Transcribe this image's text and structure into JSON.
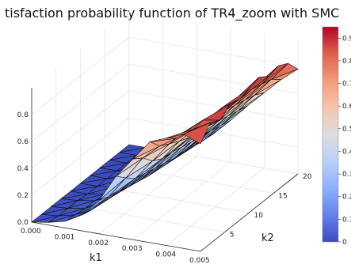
{
  "chart_data": {
    "type": "surface",
    "title": "tisfaction probability function of TR4_zoom with SMC",
    "xlabel": "k1",
    "ylabel": "k2",
    "zlabel": "",
    "x": [
      0.0,
      0.0005,
      0.001,
      0.0015,
      0.002,
      0.0025,
      0.003,
      0.0035,
      0.004,
      0.0045,
      0.005
    ],
    "y": [
      0,
      2,
      4,
      6,
      8,
      10,
      12,
      14,
      16,
      18,
      20
    ],
    "xlim": [
      0.0,
      0.005
    ],
    "ylim": [
      0,
      20
    ],
    "zlim": [
      0.0,
      1.0
    ],
    "x_ticks": [
      "0.000",
      "0.001",
      "0.002",
      "0.003",
      "0.004",
      "0.005"
    ],
    "x_tick_values": [
      0.0,
      0.001,
      0.002,
      0.003,
      0.004,
      0.005
    ],
    "y_ticks": [
      "5",
      "10",
      "15",
      "20"
    ],
    "y_tick_values": [
      5,
      10,
      15,
      20
    ],
    "z_ticks": [
      "0.0",
      "0.2",
      "0.4",
      "0.6",
      "0.8"
    ],
    "z_tick_values": [
      0.0,
      0.2,
      0.4,
      0.6,
      0.8
    ],
    "z": [
      [
        0.0,
        0.02,
        0.05,
        0.12,
        0.25,
        0.45,
        0.6,
        0.75,
        0.8,
        0.85,
        0.8
      ],
      [
        0.0,
        0.01,
        0.04,
        0.1,
        0.22,
        0.38,
        0.55,
        0.66,
        0.74,
        0.83,
        0.9
      ],
      [
        0.0,
        0.01,
        0.03,
        0.09,
        0.2,
        0.32,
        0.47,
        0.62,
        0.74,
        0.84,
        0.86
      ],
      [
        0.0,
        0.01,
        0.03,
        0.08,
        0.18,
        0.3,
        0.43,
        0.58,
        0.7,
        0.8,
        0.92
      ],
      [
        0.0,
        0.0,
        0.02,
        0.07,
        0.16,
        0.28,
        0.42,
        0.55,
        0.7,
        0.82,
        0.9
      ],
      [
        0.0,
        0.0,
        0.02,
        0.06,
        0.14,
        0.26,
        0.4,
        0.54,
        0.66,
        0.8,
        0.92
      ],
      [
        0.0,
        0.0,
        0.02,
        0.05,
        0.13,
        0.24,
        0.38,
        0.52,
        0.66,
        0.78,
        0.95
      ],
      [
        0.0,
        0.0,
        0.01,
        0.05,
        0.12,
        0.23,
        0.36,
        0.5,
        0.64,
        0.78,
        0.9
      ],
      [
        0.0,
        0.0,
        0.01,
        0.04,
        0.11,
        0.22,
        0.35,
        0.48,
        0.62,
        0.76,
        0.92
      ],
      [
        0.0,
        0.0,
        0.01,
        0.04,
        0.1,
        0.2,
        0.33,
        0.46,
        0.6,
        0.74,
        0.88
      ],
      [
        0.0,
        0.0,
        0.01,
        0.03,
        0.09,
        0.19,
        0.31,
        0.44,
        0.56,
        0.68,
        0.78
      ]
    ],
    "colorbar": {
      "range": [
        0.0,
        0.95
      ],
      "ticks": [
        "0",
        "0.1",
        "0.2",
        "0.3",
        "0.4",
        "0.5",
        "0.6",
        "0.7",
        "0.8",
        "0.9"
      ],
      "tick_values": [
        0,
        0.1,
        0.2,
        0.3,
        0.4,
        0.5,
        0.6,
        0.7,
        0.8,
        0.9
      ],
      "colormap": "coolwarm",
      "low_color": "#3b4cc0",
      "mid_color": "#dddddd",
      "high_color": "#b40426"
    },
    "grid": true,
    "colorbar_position": "right"
  }
}
